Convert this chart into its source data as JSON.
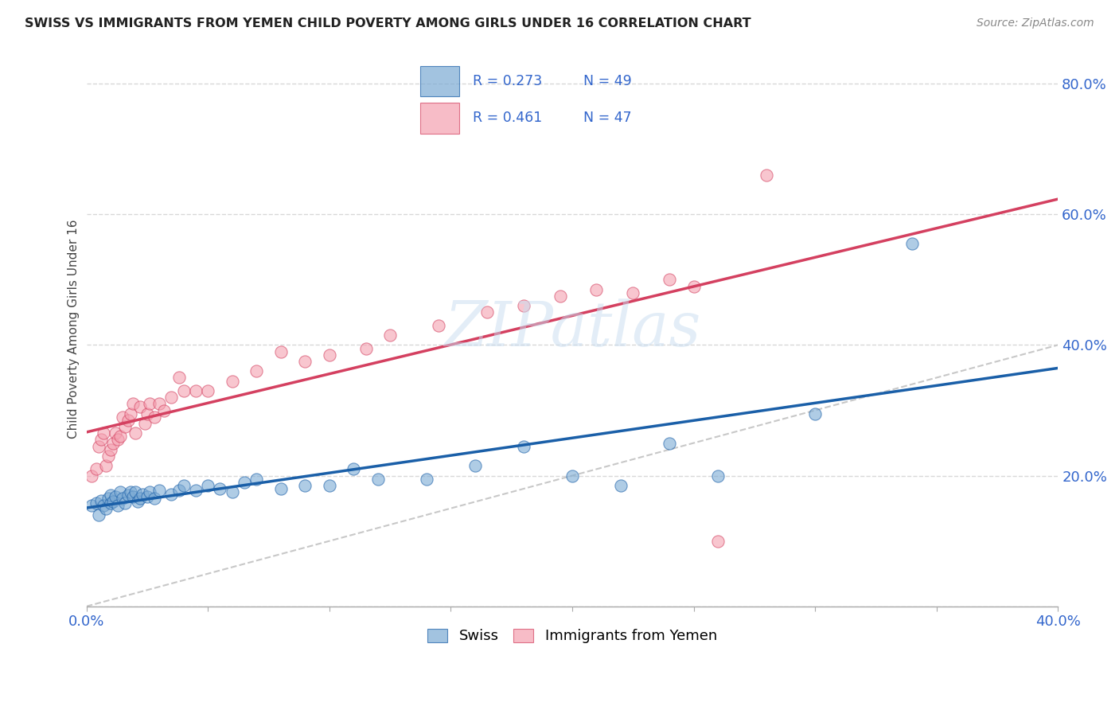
{
  "title": "SWISS VS IMMIGRANTS FROM YEMEN CHILD POVERTY AMONG GIRLS UNDER 16 CORRELATION CHART",
  "source": "Source: ZipAtlas.com",
  "ylabel": "Child Poverty Among Girls Under 16",
  "xlim": [
    0.0,
    0.4
  ],
  "ylim": [
    0.0,
    0.85
  ],
  "swiss_color": "#7baad4",
  "yemen_color": "#f4a0b0",
  "trendline_swiss_color": "#1a5fa8",
  "trendline_yemen_color": "#d44060",
  "diag_color": "#c8c8c8",
  "legend_text_color": "#3366cc",
  "watermark": "ZIPatlas",
  "background_color": "#ffffff",
  "grid_color": "#d8d8d8",
  "swiss_x": [
    0.002,
    0.004,
    0.005,
    0.006,
    0.007,
    0.008,
    0.009,
    0.01,
    0.01,
    0.011,
    0.012,
    0.013,
    0.014,
    0.015,
    0.016,
    0.017,
    0.018,
    0.019,
    0.02,
    0.021,
    0.022,
    0.023,
    0.025,
    0.026,
    0.028,
    0.03,
    0.035,
    0.038,
    0.04,
    0.045,
    0.05,
    0.055,
    0.06,
    0.065,
    0.07,
    0.08,
    0.09,
    0.1,
    0.11,
    0.12,
    0.14,
    0.16,
    0.18,
    0.2,
    0.22,
    0.24,
    0.26,
    0.3,
    0.34
  ],
  "swiss_y": [
    0.155,
    0.158,
    0.14,
    0.162,
    0.155,
    0.15,
    0.165,
    0.158,
    0.17,
    0.16,
    0.168,
    0.155,
    0.175,
    0.165,
    0.158,
    0.17,
    0.175,
    0.168,
    0.175,
    0.16,
    0.165,
    0.172,
    0.168,
    0.175,
    0.165,
    0.178,
    0.172,
    0.178,
    0.185,
    0.178,
    0.185,
    0.18,
    0.175,
    0.19,
    0.195,
    0.18,
    0.185,
    0.185,
    0.21,
    0.195,
    0.195,
    0.215,
    0.245,
    0.2,
    0.185,
    0.25,
    0.2,
    0.295,
    0.555
  ],
  "yemen_x": [
    0.002,
    0.004,
    0.005,
    0.006,
    0.007,
    0.008,
    0.009,
    0.01,
    0.011,
    0.012,
    0.013,
    0.014,
    0.015,
    0.016,
    0.017,
    0.018,
    0.019,
    0.02,
    0.022,
    0.024,
    0.025,
    0.026,
    0.028,
    0.03,
    0.032,
    0.035,
    0.038,
    0.04,
    0.045,
    0.05,
    0.06,
    0.07,
    0.08,
    0.09,
    0.1,
    0.115,
    0.125,
    0.145,
    0.165,
    0.18,
    0.195,
    0.21,
    0.225,
    0.24,
    0.25,
    0.26,
    0.28
  ],
  "yemen_y": [
    0.2,
    0.21,
    0.245,
    0.255,
    0.265,
    0.215,
    0.23,
    0.24,
    0.25,
    0.265,
    0.255,
    0.26,
    0.29,
    0.275,
    0.285,
    0.295,
    0.31,
    0.265,
    0.305,
    0.28,
    0.295,
    0.31,
    0.29,
    0.31,
    0.3,
    0.32,
    0.35,
    0.33,
    0.33,
    0.33,
    0.345,
    0.36,
    0.39,
    0.375,
    0.385,
    0.395,
    0.415,
    0.43,
    0.45,
    0.46,
    0.475,
    0.485,
    0.48,
    0.5,
    0.49,
    0.1,
    0.66
  ]
}
